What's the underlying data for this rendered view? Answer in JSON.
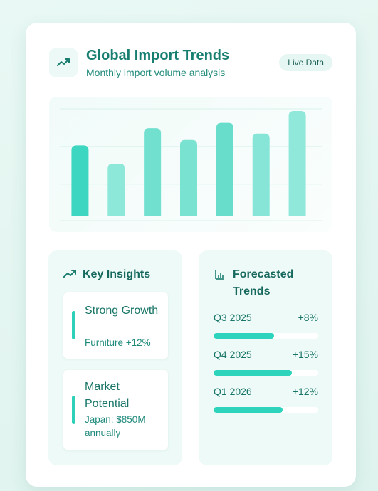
{
  "header": {
    "icon": "trending-up-icon",
    "title": "Global Import Trends",
    "subtitle": "Monthly import volume analysis",
    "badge": "Live Data"
  },
  "chart_data": {
    "type": "bar",
    "ylim": [
      0,
      100
    ],
    "grid": true,
    "values": [
      66,
      49,
      82,
      71,
      87,
      77,
      98
    ],
    "colors": [
      "#3dd7c1",
      "#8ee8d9",
      "#72e0cf",
      "#79e2d1",
      "#69ddcb",
      "#86e5d6",
      "#8fe8da"
    ]
  },
  "insights": {
    "icon": "trending-up-icon",
    "title": "Key Insights",
    "items": [
      {
        "title": "Strong Growth",
        "desc": "Furniture +12%"
      },
      {
        "title": "Market Potential",
        "desc": "Japan: $850M annually"
      }
    ]
  },
  "forecast": {
    "icon": "bar-chart-icon",
    "title": "Forecasted Trends",
    "rows": [
      {
        "label": "Q3 2025",
        "value": "+8%",
        "progress": 0.58
      },
      {
        "label": "Q4 2025",
        "value": "+15%",
        "progress": 0.75
      },
      {
        "label": "Q1 2026",
        "value": "+12%",
        "progress": 0.66
      }
    ]
  }
}
